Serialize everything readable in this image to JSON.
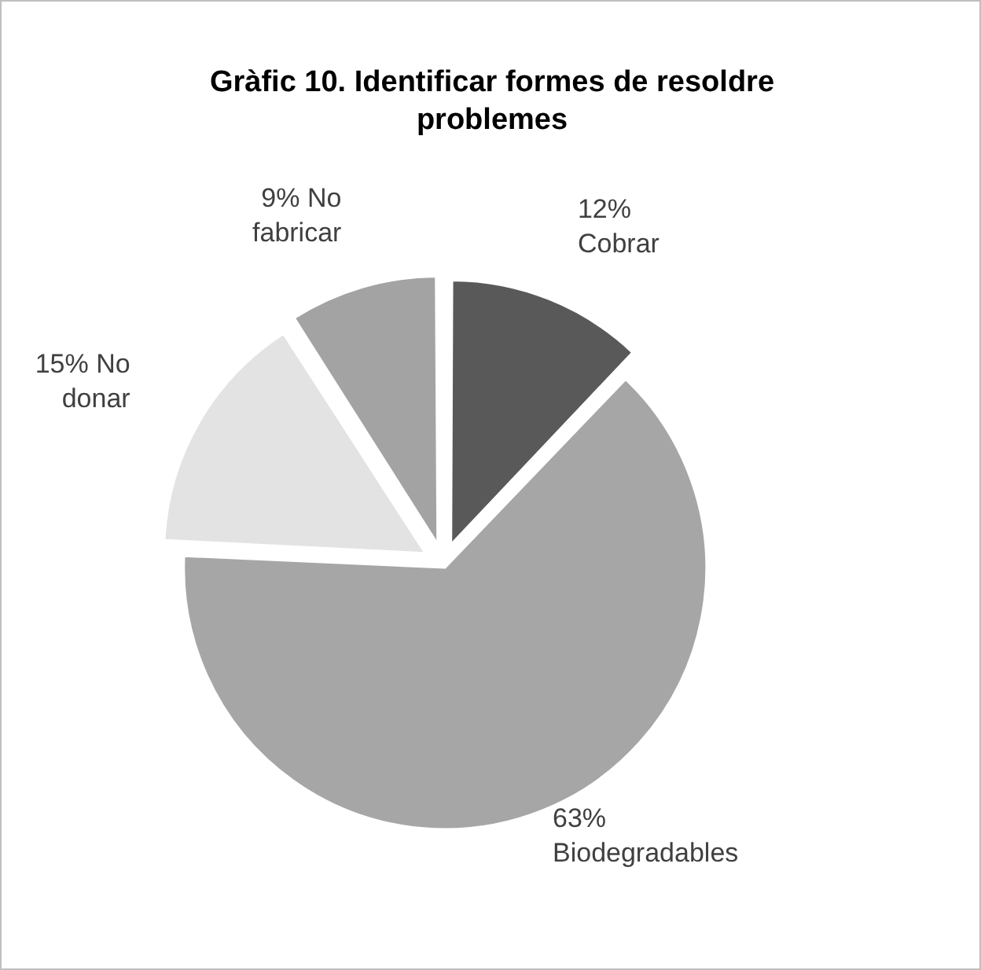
{
  "chart_data": {
    "type": "pie",
    "title": "Gràfic 10. Identificar formes de resoldre problemes",
    "categories": [
      "Cobrar",
      "Biodegradables",
      "No donar",
      "No fabricar"
    ],
    "values": [
      12,
      63,
      15,
      9
    ],
    "colors": [
      "#595959",
      "#a6a6a6",
      "#e3e3e3",
      "#a3a3a3"
    ],
    "value_labels": [
      "12%",
      "63%",
      "15%",
      "9%"
    ],
    "legend": false
  }
}
